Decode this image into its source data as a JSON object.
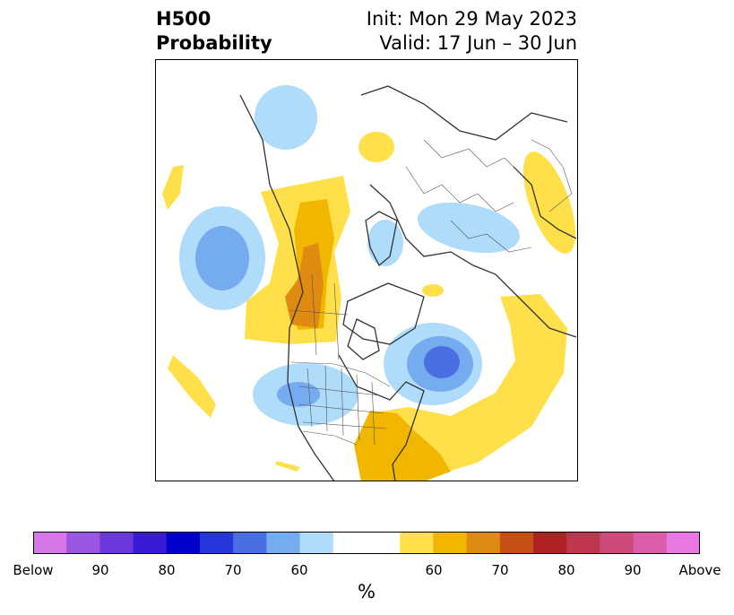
{
  "title": {
    "left_line1": "H500",
    "left_line2": "Probability",
    "right_line1": "Init: Mon 29 May 2023",
    "right_line2": "Valid: 17 Jun – 30 Jun"
  },
  "colorbar": {
    "unit": "%",
    "colors": [
      "#d676e9",
      "#9c55e1",
      "#6b37de",
      "#3a1ad5",
      "#0000cd",
      "#2537d8",
      "#4a6fe3",
      "#74acef",
      "#aedcfa",
      "#ffffff",
      "#ffe04a",
      "#f1b600",
      "#df8a10",
      "#c45016",
      "#b02124",
      "#c0364f",
      "#cc4b7c",
      "#db5da8",
      "#e879e0"
    ],
    "tick_labels": [
      "Below",
      "90",
      "80",
      "70",
      "60",
      "60",
      "70",
      "80",
      "90",
      "Above"
    ]
  },
  "map": {
    "legend_colors": {
      "below_60": "#aedcfa",
      "below_70": "#74acef",
      "below_80": "#4a6fe3",
      "above_60": "#ffe04a",
      "above_70": "#f1b600",
      "above_80": "#df8a10"
    }
  }
}
